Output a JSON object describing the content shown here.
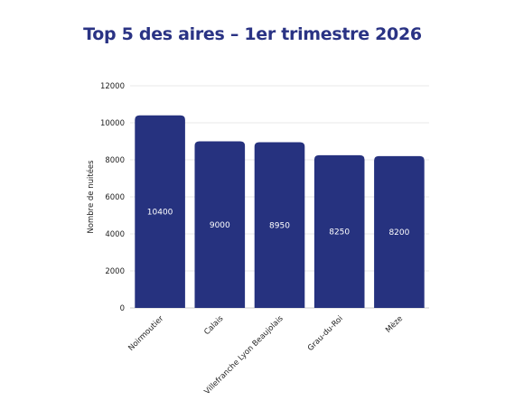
{
  "colors": {
    "title": "#2a3384",
    "bar": "#26327f",
    "grid": "#e0e0e0",
    "axis": "#bdbdbd"
  },
  "chart_data": {
    "type": "bar",
    "title": "Top 5 des aires – 1er trimestre 2026",
    "xlabel": "",
    "ylabel": "Nombre de nuitées",
    "categories": [
      "Noirmoutier",
      "Calais",
      "Villefranche Lyon Beaujolais",
      "Grau-du-Roi",
      "Mèze"
    ],
    "values": [
      10400,
      9000,
      8950,
      8250,
      8200
    ],
    "data_labels": [
      "10400",
      "9000",
      "8950",
      "8250",
      "8200"
    ],
    "ylim": [
      0,
      12000
    ],
    "yticks": [
      0,
      2000,
      4000,
      6000,
      8000,
      10000,
      12000
    ],
    "grid": true,
    "legend": "none"
  }
}
